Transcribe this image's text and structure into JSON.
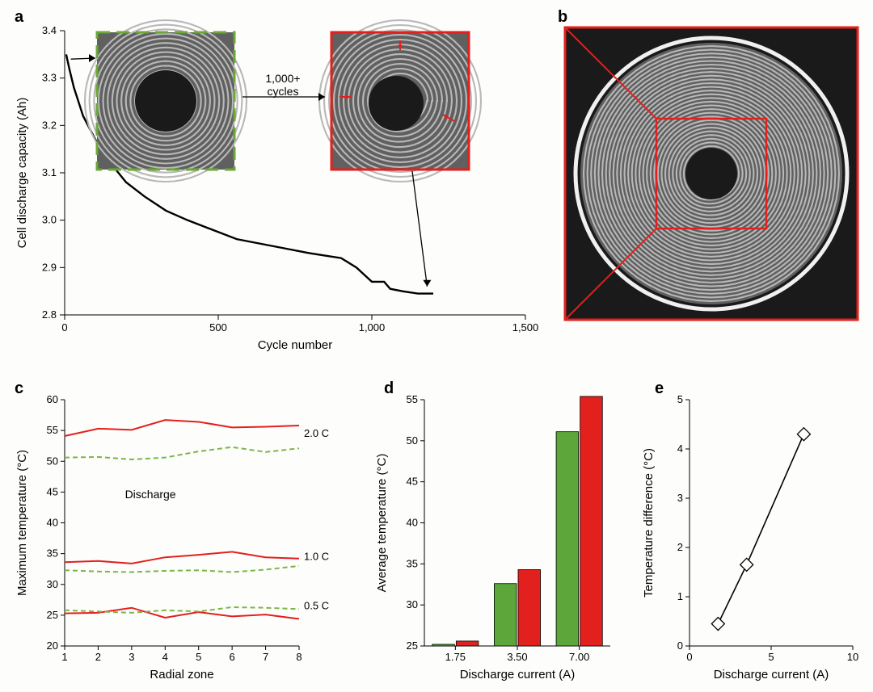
{
  "labels": {
    "a": "a",
    "b": "b",
    "c": "c",
    "d": "d",
    "e": "e"
  },
  "colors": {
    "black": "#000000",
    "red": "#e2201d",
    "green": "#6aa936",
    "greenDash": "#7ab648",
    "greenBar": "#5ca63a",
    "redBar": "#e2201d",
    "bg": "#fdfdfc",
    "ctGray": "#606060",
    "ctLight": "#b8b8b8",
    "ctDark": "#1a1a1a"
  },
  "panelA": {
    "xlabel": "Cycle number",
    "ylabel": "Cell discharge capacity (Ah)",
    "xlim": [
      0,
      1500
    ],
    "ylim": [
      2.8,
      3.4
    ],
    "xticks": [
      0,
      500,
      1000,
      1500
    ],
    "xtickLabels": [
      "0",
      "500",
      "1,000",
      "1,500"
    ],
    "yticks": [
      2.8,
      2.9,
      3.0,
      3.1,
      3.2,
      3.3,
      3.4
    ],
    "curve": [
      [
        5,
        3.35
      ],
      [
        15,
        3.32
      ],
      [
        30,
        3.28
      ],
      [
        60,
        3.22
      ],
      [
        100,
        3.17
      ],
      [
        150,
        3.12
      ],
      [
        200,
        3.08
      ],
      [
        260,
        3.05
      ],
      [
        330,
        3.02
      ],
      [
        400,
        3.0
      ],
      [
        480,
        2.98
      ],
      [
        560,
        2.96
      ],
      [
        640,
        2.95
      ],
      [
        720,
        2.94
      ],
      [
        800,
        2.93
      ],
      [
        850,
        2.925
      ],
      [
        900,
        2.92
      ],
      [
        950,
        2.9
      ],
      [
        1000,
        2.87
      ],
      [
        1040,
        2.87
      ],
      [
        1060,
        2.855
      ],
      [
        1100,
        2.85
      ],
      [
        1150,
        2.845
      ],
      [
        1200,
        2.845
      ]
    ],
    "annotation": "1,000+\ncycles",
    "lineWidth": 2.4
  },
  "panelC": {
    "xlabel": "Radial zone",
    "ylabel": "Maximum temperature (°C)",
    "xlim": [
      1,
      8
    ],
    "ylim": [
      20,
      60
    ],
    "xticks": [
      1,
      2,
      3,
      4,
      5,
      6,
      7,
      8
    ],
    "yticks": [
      20,
      25,
      30,
      35,
      40,
      45,
      50,
      55,
      60
    ],
    "text": "Discharge",
    "rateLabels": [
      "2.0 C",
      "1.0 C",
      "0.5 C"
    ],
    "series": [
      {
        "color": "#e2201d",
        "dash": "",
        "w": 2,
        "pts": [
          [
            1,
            54.1
          ],
          [
            2,
            55.3
          ],
          [
            3,
            55.1
          ],
          [
            4,
            56.7
          ],
          [
            5,
            56.4
          ],
          [
            6,
            55.5
          ],
          [
            7,
            55.6
          ],
          [
            8,
            55.8
          ]
        ]
      },
      {
        "color": "#7ab648",
        "dash": "6,4",
        "w": 2,
        "pts": [
          [
            1,
            50.6
          ],
          [
            2,
            50.7
          ],
          [
            3,
            50.3
          ],
          [
            4,
            50.6
          ],
          [
            5,
            51.6
          ],
          [
            6,
            52.3
          ],
          [
            7,
            51.5
          ],
          [
            8,
            52.1
          ]
        ]
      },
      {
        "color": "#e2201d",
        "dash": "",
        "w": 2,
        "pts": [
          [
            1,
            33.6
          ],
          [
            2,
            33.8
          ],
          [
            3,
            33.4
          ],
          [
            4,
            34.4
          ],
          [
            5,
            34.8
          ],
          [
            6,
            35.3
          ],
          [
            7,
            34.4
          ],
          [
            8,
            34.2
          ]
        ]
      },
      {
        "color": "#7ab648",
        "dash": "6,4",
        "w": 2,
        "pts": [
          [
            1,
            32.3
          ],
          [
            2,
            32.1
          ],
          [
            3,
            32.0
          ],
          [
            4,
            32.2
          ],
          [
            5,
            32.3
          ],
          [
            6,
            32.0
          ],
          [
            7,
            32.4
          ],
          [
            8,
            33.0
          ]
        ]
      },
      {
        "color": "#e2201d",
        "dash": "",
        "w": 2,
        "pts": [
          [
            1,
            25.3
          ],
          [
            2,
            25.4
          ],
          [
            3,
            26.2
          ],
          [
            4,
            24.6
          ],
          [
            5,
            25.5
          ],
          [
            6,
            24.8
          ],
          [
            7,
            25.1
          ],
          [
            8,
            24.4
          ]
        ]
      },
      {
        "color": "#7ab648",
        "dash": "6,4",
        "w": 2,
        "pts": [
          [
            1,
            25.8
          ],
          [
            2,
            25.6
          ],
          [
            3,
            25.4
          ],
          [
            4,
            25.8
          ],
          [
            5,
            25.6
          ],
          [
            6,
            26.3
          ],
          [
            7,
            26.2
          ],
          [
            8,
            26.0
          ]
        ]
      }
    ]
  },
  "panelD": {
    "xlabel": "Discharge current (A)",
    "ylabel": "Average temperature (°C)",
    "ylim": [
      25,
      55
    ],
    "yticks": [
      25,
      30,
      35,
      40,
      45,
      50,
      55
    ],
    "categories": [
      "1.75",
      "3.50",
      "7.00"
    ],
    "bars": [
      {
        "cat": 0,
        "color": "#5ca63a",
        "val": 25.2
      },
      {
        "cat": 0,
        "color": "#e2201d",
        "val": 25.6
      },
      {
        "cat": 1,
        "color": "#5ca63a",
        "val": 32.6
      },
      {
        "cat": 1,
        "color": "#e2201d",
        "val": 34.3
      },
      {
        "cat": 2,
        "color": "#5ca63a",
        "val": 51.1
      },
      {
        "cat": 2,
        "color": "#e2201d",
        "val": 55.4
      }
    ],
    "barW": 0.36
  },
  "panelE": {
    "xlabel": "Discharge current (A)",
    "ylabel": "Temperature difference (°C)",
    "xlim": [
      0,
      10
    ],
    "ylim": [
      0,
      5
    ],
    "xticks": [
      0,
      5,
      10
    ],
    "yticks": [
      0,
      1,
      2,
      3,
      4,
      5
    ],
    "points": [
      [
        1.75,
        0.45
      ],
      [
        3.5,
        1.65
      ],
      [
        7.0,
        4.3
      ]
    ],
    "marker": "diamond",
    "markerSize": 8,
    "lineWidth": 1.6
  }
}
